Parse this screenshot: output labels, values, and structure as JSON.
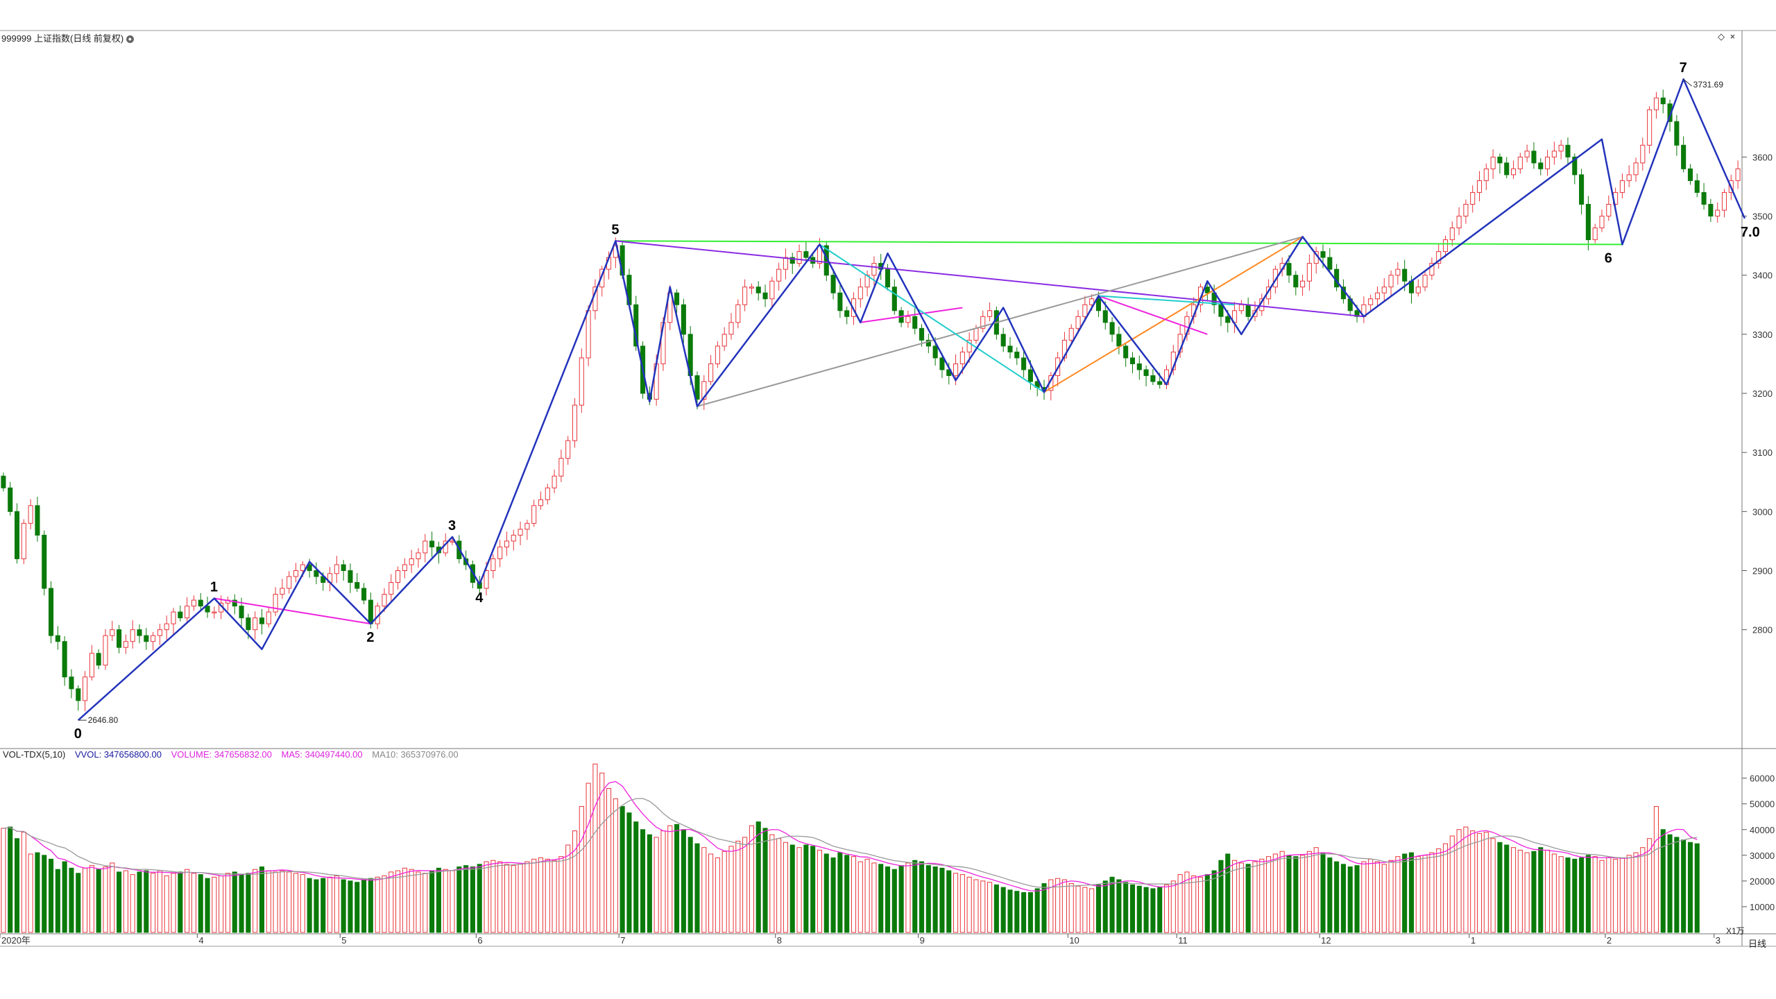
{
  "header": {
    "title": "999999 上证指数(日线 前复权)",
    "diamond": "◇",
    "close": "×"
  },
  "volume_legend": {
    "name": "VOL-TDX(5,10)",
    "vvol": "VVOL: 347656800.00",
    "volume": "VOLUME: 347656832.00",
    "ma5": "MA5: 340497440.00",
    "ma10": "MA10: 365370976.00"
  },
  "axis": {
    "price_ticks": [
      "3600",
      "3500",
      "3400",
      "3300",
      "3200",
      "3100",
      "3000",
      "2900",
      "2800"
    ],
    "volume_ticks": [
      "60000",
      "50000",
      "40000",
      "30000",
      "20000",
      "10000"
    ],
    "volume_unit": "X1万",
    "date_ticks": [
      "2020年",
      "4",
      "5",
      "6",
      "7",
      "8",
      "9",
      "10",
      "11",
      "12",
      "1",
      "2",
      "3"
    ],
    "period": "日线"
  },
  "annotations": {
    "wave_labels": [
      "0",
      "1",
      "2",
      "3",
      "4",
      "5",
      "6",
      "7",
      "7.0"
    ],
    "low_value": "2646.80",
    "high_value": "3731.69"
  },
  "colors": {
    "up": "#e8343a",
    "down": "#0a7a0a",
    "wave": "#2233bb",
    "purple": "#8a2be2",
    "magenta": "#ee22dd",
    "cyan": "#22cccc",
    "gray": "#999999",
    "orange": "#ff8822",
    "green_line": "#33ee33",
    "ma5": "#ee22dd",
    "ma10": "#999999"
  },
  "chart_data": {
    "type": "candlestick",
    "title": "999999 上证指数(日线 前复权)",
    "ylim": [
      2600,
      3800
    ],
    "y_ticks": [
      2800,
      2900,
      3000,
      3100,
      3200,
      3300,
      3400,
      3500,
      3600
    ],
    "volume_ylim": [
      0,
      68000
    ],
    "volume_unit": "X1万",
    "month_ticks": [
      {
        "label": "2020年",
        "index": 0
      },
      {
        "label": "4",
        "index": 29
      },
      {
        "label": "5",
        "index": 50
      },
      {
        "label": "6",
        "index": 70
      },
      {
        "label": "7",
        "index": 91
      },
      {
        "label": "8",
        "index": 114
      },
      {
        "label": "9",
        "index": 135
      },
      {
        "label": "10",
        "index": 157
      },
      {
        "label": "11",
        "index": 173
      },
      {
        "label": "12",
        "index": 194
      },
      {
        "label": "1",
        "index": 216
      },
      {
        "label": "2",
        "index": 236
      },
      {
        "label": "3",
        "index": 252
      }
    ],
    "turning_points": [
      {
        "label": "0",
        "index": 11,
        "value": 2646.8
      },
      {
        "label": "1",
        "index": 31,
        "value": 2853
      },
      {
        "label": "2",
        "index": 54,
        "value": 2810
      },
      {
        "label": "3",
        "index": 66,
        "value": 2957
      },
      {
        "label": "4",
        "index": 70,
        "value": 2877
      },
      {
        "label": "5",
        "index": 90,
        "value": 3458
      },
      {
        "label": "6",
        "index": 236,
        "value": 3452
      },
      {
        "label": "7",
        "index": 247,
        "value": 3731.69
      },
      {
        "label": "7.0",
        "index": 256,
        "value": 3496
      }
    ],
    "extremes": {
      "low": 2646.8,
      "high": 3731.69
    },
    "wave_path": [
      [
        11,
        2646.8
      ],
      [
        31,
        2853
      ],
      [
        38,
        2767
      ],
      [
        45,
        2915
      ],
      [
        54,
        2810
      ],
      [
        66,
        2957
      ],
      [
        70,
        2877
      ],
      [
        90,
        3458
      ],
      [
        95,
        3186
      ],
      [
        98,
        3380
      ],
      [
        102,
        3178
      ],
      [
        120,
        3452
      ],
      [
        126,
        3320
      ],
      [
        130,
        3437
      ],
      [
        140,
        3222
      ],
      [
        147,
        3345
      ],
      [
        153,
        3202
      ],
      [
        161,
        3365
      ],
      [
        171,
        3215
      ],
      [
        177,
        3390
      ],
      [
        182,
        3300
      ],
      [
        191,
        3465
      ],
      [
        200,
        3330
      ],
      [
        235,
        3630
      ],
      [
        238,
        3452
      ],
      [
        247,
        3731.69
      ],
      [
        256,
        3496
      ]
    ],
    "trend_lines": [
      {
        "color": "green_line",
        "points": [
          [
            90,
            3458
          ],
          [
            238,
            3452
          ]
        ]
      },
      {
        "color": "purple",
        "points": [
          [
            90,
            3458
          ],
          [
            200,
            3330
          ]
        ]
      },
      {
        "color": "gray",
        "points": [
          [
            102,
            3178
          ],
          [
            191,
            3465
          ]
        ]
      },
      {
        "color": "orange",
        "points": [
          [
            153,
            3202
          ],
          [
            191,
            3465
          ]
        ]
      },
      {
        "color": "magenta",
        "points": [
          [
            31,
            2853
          ],
          [
            54,
            2810
          ]
        ]
      },
      {
        "color": "magenta",
        "points": [
          [
            90,
            3458
          ],
          [
            95,
            3186
          ]
        ]
      },
      {
        "color": "magenta",
        "points": [
          [
            126,
            3320
          ],
          [
            141,
            3345
          ]
        ]
      },
      {
        "color": "magenta",
        "points": [
          [
            161,
            3365
          ],
          [
            177,
            3300
          ]
        ]
      },
      {
        "color": "cyan",
        "points": [
          [
            120,
            3452
          ],
          [
            153,
            3202
          ]
        ]
      },
      {
        "color": "cyan",
        "points": [
          [
            161,
            3365
          ],
          [
            181,
            3350
          ]
        ]
      }
    ],
    "closes": [
      3040,
      3000,
      2920,
      2980,
      3010,
      2960,
      2870,
      2790,
      2780,
      2720,
      2700,
      2680,
      2720,
      2760,
      2740,
      2790,
      2800,
      2770,
      2780,
      2800,
      2790,
      2780,
      2790,
      2800,
      2810,
      2830,
      2820,
      2840,
      2850,
      2840,
      2830,
      2830,
      2845,
      2850,
      2840,
      2820,
      2800,
      2820,
      2810,
      2830,
      2860,
      2870,
      2890,
      2900,
      2910,
      2900,
      2890,
      2880,
      2895,
      2910,
      2900,
      2880,
      2870,
      2850,
      2810,
      2840,
      2860,
      2880,
      2900,
      2910,
      2920,
      2930,
      2950,
      2940,
      2930,
      2950,
      2950,
      2920,
      2910,
      2880,
      2870,
      2900,
      2920,
      2940,
      2950,
      2960,
      2970,
      2980,
      3010,
      3020,
      3040,
      3060,
      3090,
      3120,
      3180,
      3260,
      3340,
      3380,
      3410,
      3430,
      3450,
      3400,
      3350,
      3280,
      3200,
      3190,
      3250,
      3320,
      3370,
      3350,
      3300,
      3230,
      3190,
      3220,
      3250,
      3280,
      3300,
      3320,
      3350,
      3380,
      3380,
      3370,
      3360,
      3390,
      3410,
      3430,
      3420,
      3440,
      3430,
      3420,
      3450,
      3400,
      3370,
      3340,
      3330,
      3360,
      3380,
      3400,
      3420,
      3410,
      3380,
      3340,
      3320,
      3330,
      3310,
      3290,
      3280,
      3260,
      3240,
      3230,
      3250,
      3270,
      3290,
      3310,
      3330,
      3340,
      3300,
      3280,
      3270,
      3260,
      3240,
      3220,
      3210,
      3205,
      3230,
      3260,
      3290,
      3310,
      3330,
      3350,
      3360,
      3340,
      3320,
      3300,
      3280,
      3260,
      3250,
      3240,
      3230,
      3220,
      3215,
      3240,
      3270,
      3300,
      3330,
      3350,
      3380,
      3370,
      3350,
      3330,
      3320,
      3340,
      3350,
      3330,
      3340,
      3360,
      3380,
      3410,
      3420,
      3400,
      3380,
      3390,
      3420,
      3440,
      3430,
      3410,
      3380,
      3360,
      3340,
      3330,
      3350,
      3360,
      3370,
      3380,
      3400,
      3410,
      3390,
      3370,
      3380,
      3400,
      3420,
      3440,
      3460,
      3480,
      3500,
      3520,
      3540,
      3560,
      3580,
      3600,
      3590,
      3570,
      3580,
      3600,
      3610,
      3590,
      3580,
      3600,
      3610,
      3620,
      3600,
      3570,
      3520,
      3460,
      3480,
      3500,
      3520,
      3540,
      3560,
      3570,
      3590,
      3620,
      3680,
      3700,
      3690,
      3660,
      3620,
      3580,
      3560,
      3540,
      3520,
      3500,
      3510,
      3540,
      3560,
      3580
    ],
    "volumes": [
      40500,
      41000,
      36500,
      39000,
      30500,
      31000,
      30000,
      28500,
      24500,
      27500,
      25000,
      23000,
      25000,
      26000,
      24500,
      25500,
      27000,
      23500,
      24000,
      22500,
      23500,
      24000,
      23000,
      24000,
      22000,
      23000,
      23500,
      24500,
      23000,
      22500,
      21000,
      21500,
      22000,
      23000,
      23500,
      22500,
      23000,
      24500,
      25500,
      24000,
      23500,
      24000,
      23500,
      23000,
      22500,
      21000,
      20500,
      21000,
      21500,
      22000,
      20500,
      20000,
      19500,
      20500,
      21000,
      21500,
      22000,
      23500,
      24000,
      25000,
      24500,
      23500,
      23000,
      24000,
      25000,
      24500,
      24000,
      25500,
      26000,
      25500,
      26500,
      27500,
      28000,
      27500,
      26500,
      26000,
      26500,
      27500,
      28500,
      29000,
      28500,
      28000,
      29500,
      34000,
      39500,
      49000,
      58000,
      65500,
      62000,
      56000,
      52000,
      49000,
      46500,
      43000,
      40000,
      38000,
      37000,
      39500,
      41500,
      42000,
      40000,
      37000,
      34500,
      33000,
      30500,
      29000,
      31500,
      33500,
      35500,
      37000,
      41500,
      43000,
      40500,
      38000,
      36500,
      35000,
      34000,
      33000,
      34000,
      33500,
      32000,
      30500,
      29000,
      31000,
      30000,
      29500,
      27500,
      28500,
      27000,
      26500,
      25500,
      24500,
      26000,
      27000,
      28000,
      27500,
      26000,
      25500,
      25000,
      24000,
      23000,
      22500,
      21500,
      20500,
      20000,
      19500,
      18500,
      17500,
      16500,
      16000,
      15500,
      15500,
      17000,
      19000,
      20500,
      21000,
      20500,
      19000,
      18000,
      17500,
      17000,
      18500,
      20000,
      21500,
      20500,
      19500,
      18500,
      18000,
      17500,
      17000,
      17500,
      18500,
      20000,
      22500,
      23500,
      22000,
      21500,
      22500,
      24000,
      28000,
      30500,
      28000,
      27000,
      26500,
      27500,
      28500,
      29500,
      30500,
      31500,
      30000,
      29500,
      30000,
      31500,
      33000,
      31000,
      29000,
      27500,
      26500,
      25500,
      26000,
      27500,
      28500,
      27500,
      26500,
      28000,
      29500,
      30500,
      31000,
      29500,
      30000,
      31000,
      32500,
      34500,
      37500,
      40000,
      41000,
      39500,
      38500,
      39000,
      36500,
      35000,
      34000,
      33000,
      32000,
      31000,
      31500,
      33000,
      32000,
      30500,
      29500,
      29000,
      28500,
      29000,
      30000,
      29500,
      28000,
      29000,
      28500,
      29000,
      30000,
      31000,
      33000,
      36500,
      49000,
      40000,
      38000,
      37000,
      36000,
      35000,
      34500
    ]
  }
}
